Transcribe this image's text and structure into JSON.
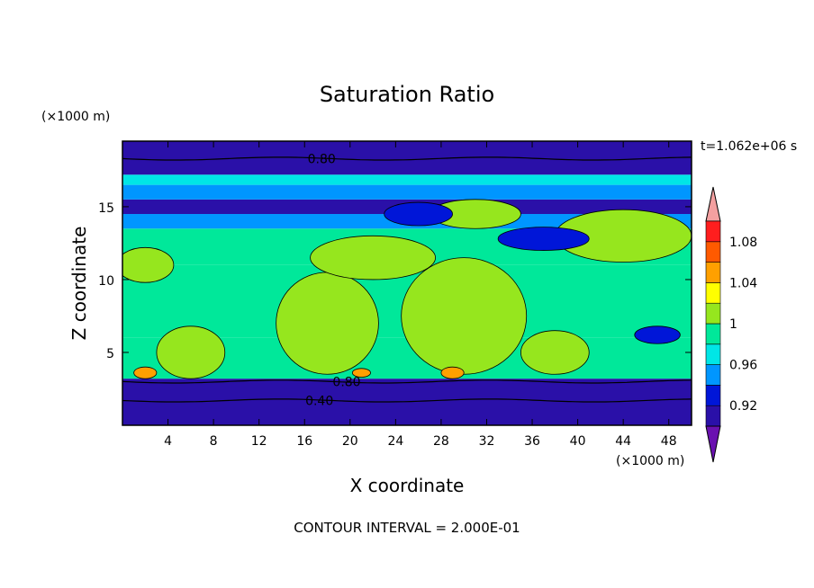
{
  "chart_data": {
    "type": "heatmap",
    "title": "Saturation Ratio",
    "xlabel": "X coordinate",
    "ylabel": "Z coordinate",
    "x_unit": "(×1000 m)",
    "y_unit": "(×1000 m)",
    "time_label": "t=1.062e+06 s",
    "footer": "CONTOUR INTERVAL = 2.000E-01",
    "xlim": [
      0,
      50
    ],
    "ylim": [
      0,
      19.5
    ],
    "x_ticks": [
      "4",
      "8",
      "12",
      "16",
      "20",
      "24",
      "28",
      "32",
      "36",
      "40",
      "44",
      "48"
    ],
    "x_tick_values": [
      4,
      8,
      12,
      16,
      20,
      24,
      28,
      32,
      36,
      40,
      44,
      48
    ],
    "y_ticks": [
      "5",
      "10",
      "15"
    ],
    "y_tick_values": [
      5,
      10,
      15
    ],
    "colorbar": {
      "levels": [
        0.9,
        0.92,
        0.94,
        0.96,
        0.98,
        1.0,
        1.02,
        1.04,
        1.06,
        1.08,
        1.1
      ],
      "tick_labels": [
        "0.92",
        "0.96",
        "1",
        "1.04",
        "1.08"
      ],
      "tick_values": [
        0.92,
        0.96,
        1.0,
        1.04,
        1.08
      ],
      "colors": [
        "#6a11b0",
        "#2a10a8",
        "#0016d8",
        "#0096ff",
        "#00e6e6",
        "#00e89a",
        "#96e61e",
        "#ffff00",
        "#ffa000",
        "#ff5a00",
        "#ff1e1e"
      ],
      "under_color": "#6a11b0",
      "over_color": "#f4a0a0"
    },
    "contour_labels": [
      {
        "text": "0.80",
        "x": 17.5,
        "y": 18.3
      },
      {
        "text": "0.80",
        "x": 19.7,
        "y": 3.0
      },
      {
        "text": "0.40",
        "x": 17.3,
        "y": 1.7
      }
    ],
    "layers": [
      {
        "y0": 0.0,
        "y1": 3.2,
        "value": 0.9
      },
      {
        "y0": 3.2,
        "y1": 6.0,
        "value": 0.99
      },
      {
        "y0": 6.0,
        "y1": 11.0,
        "value": 0.985
      },
      {
        "y0": 11.0,
        "y1": 13.5,
        "value": 0.99
      },
      {
        "y0": 13.5,
        "y1": 14.5,
        "value": 0.94
      },
      {
        "y0": 14.5,
        "y1": 15.5,
        "value": 0.9
      },
      {
        "y0": 15.5,
        "y1": 16.5,
        "value": 0.95
      },
      {
        "y0": 16.5,
        "y1": 17.2,
        "value": 0.97
      },
      {
        "y0": 17.2,
        "y1": 19.5,
        "value": 0.9
      }
    ],
    "features": [
      {
        "kind": "cloud",
        "cx": 18,
        "cy": 7,
        "rx": 4.5,
        "ry": 3.5,
        "value": 1.01
      },
      {
        "kind": "cloud",
        "cx": 30,
        "cy": 7.5,
        "rx": 5.5,
        "ry": 4.0,
        "value": 1.01
      },
      {
        "kind": "cloud",
        "cx": 22,
        "cy": 11.5,
        "rx": 5.5,
        "ry": 1.5,
        "value": 1.01
      },
      {
        "kind": "cloud",
        "cx": 31,
        "cy": 14.5,
        "rx": 4.0,
        "ry": 1.0,
        "value": 1.01
      },
      {
        "kind": "cloud",
        "cx": 44,
        "cy": 13,
        "rx": 6.0,
        "ry": 1.8,
        "value": 1.01
      },
      {
        "kind": "cloud",
        "cx": 38,
        "cy": 5,
        "rx": 3.0,
        "ry": 1.5,
        "value": 1.01
      },
      {
        "kind": "cloud",
        "cx": 6,
        "cy": 5,
        "rx": 3.0,
        "ry": 1.8,
        "value": 1.01
      },
      {
        "kind": "cloud",
        "cx": 2,
        "cy": 11,
        "rx": 2.5,
        "ry": 1.2,
        "value": 1.01
      },
      {
        "kind": "dry",
        "cx": 26,
        "cy": 14.5,
        "rx": 3.0,
        "ry": 0.8,
        "value": 0.92
      },
      {
        "kind": "dry",
        "cx": 37,
        "cy": 12.8,
        "rx": 4.0,
        "ry": 0.8,
        "value": 0.92
      },
      {
        "kind": "dry",
        "cx": 47,
        "cy": 6.2,
        "rx": 2.0,
        "ry": 0.6,
        "value": 0.92
      },
      {
        "kind": "moist",
        "cx": 2,
        "cy": 3.6,
        "rx": 1.0,
        "ry": 0.4,
        "value": 1.05
      },
      {
        "kind": "moist",
        "cx": 29,
        "cy": 3.6,
        "rx": 1.0,
        "ry": 0.4,
        "value": 1.05
      },
      {
        "kind": "moist",
        "cx": 21,
        "cy": 3.6,
        "rx": 0.8,
        "ry": 0.3,
        "value": 1.05
      }
    ]
  }
}
